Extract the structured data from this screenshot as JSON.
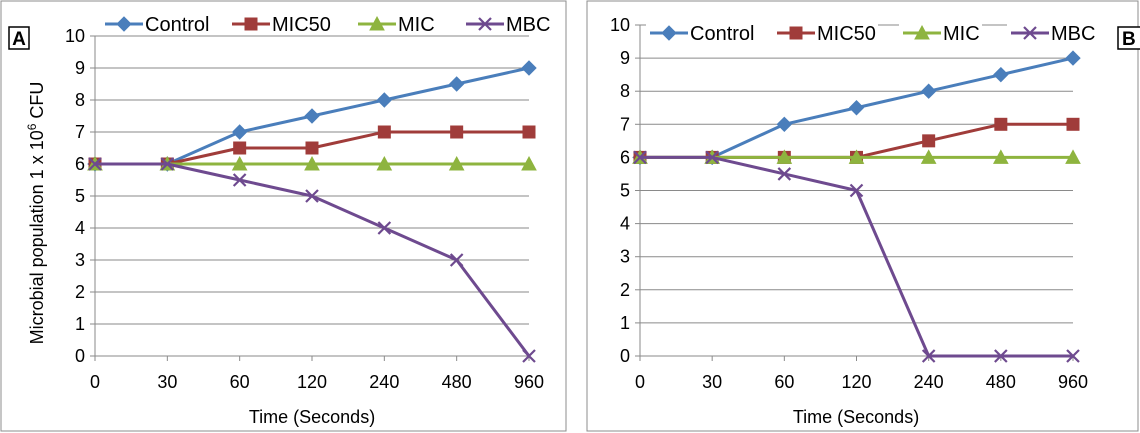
{
  "chart_data": [
    {
      "panel_label": "A",
      "type": "line",
      "categories": [
        "0",
        "30",
        "60",
        "120",
        "240",
        "480",
        "960"
      ],
      "xlabel": "Time (Seconds)",
      "ylabel": "Microbial population 1 x 10",
      "ylabel_superscript": "6",
      "ylabel_suffix": " CFU",
      "ylim": [
        0,
        10
      ],
      "yticks": [
        "0",
        "1",
        "2",
        "3",
        "4",
        "5",
        "6",
        "7",
        "8",
        "9",
        "10"
      ],
      "grid": true,
      "legend_position": "top",
      "series": [
        {
          "name": "Control",
          "color": "#4a7ebb",
          "marker": "diamond",
          "values": [
            6,
            6,
            7,
            7.5,
            8,
            8.5,
            9
          ]
        },
        {
          "name": "MIC50",
          "color": "#a03c3a",
          "marker": "square",
          "values": [
            6,
            6,
            6.5,
            6.5,
            7,
            7,
            7
          ]
        },
        {
          "name": "MIC",
          "color": "#8eb43f",
          "marker": "triangle",
          "values": [
            6,
            6,
            6,
            6,
            6,
            6,
            6
          ]
        },
        {
          "name": "MBC",
          "color": "#6e4a8f",
          "marker": "x",
          "values": [
            6,
            6,
            5.5,
            5,
            4,
            3,
            0
          ]
        }
      ]
    },
    {
      "panel_label": "B",
      "type": "line",
      "categories": [
        "0",
        "30",
        "60",
        "120",
        "240",
        "480",
        "960"
      ],
      "xlabel": "Time (Seconds)",
      "ylim": [
        0,
        10
      ],
      "yticks": [
        "0",
        "1",
        "2",
        "3",
        "4",
        "5",
        "6",
        "7",
        "8",
        "9",
        "10"
      ],
      "grid": true,
      "legend_position": "top",
      "series": [
        {
          "name": "Control",
          "color": "#4a7ebb",
          "marker": "diamond",
          "values": [
            6,
            6,
            7,
            7.5,
            8,
            8.5,
            9
          ]
        },
        {
          "name": "MIC50",
          "color": "#a03c3a",
          "marker": "square",
          "values": [
            6,
            6,
            6,
            6,
            6.5,
            7,
            7
          ]
        },
        {
          "name": "MIC",
          "color": "#8eb43f",
          "marker": "triangle",
          "values": [
            6,
            6,
            6,
            6,
            6,
            6,
            6
          ]
        },
        {
          "name": "MBC",
          "color": "#6e4a8f",
          "marker": "x",
          "values": [
            6,
            6,
            5.5,
            5,
            0,
            0,
            0
          ]
        }
      ]
    }
  ]
}
